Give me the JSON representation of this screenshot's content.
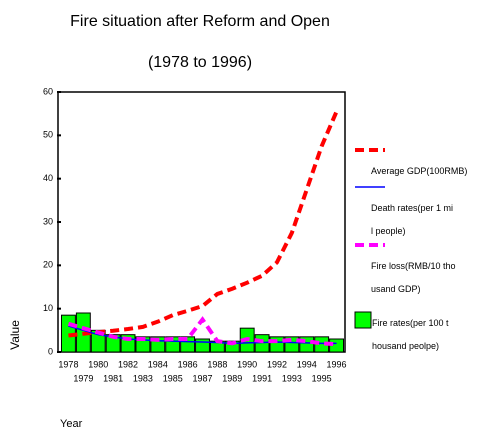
{
  "chart_data": {
    "type": "bar",
    "title": "Fire situation after Reform and Open",
    "subtitle": "(1978 to 1996)",
    "x_label": "Year",
    "y_label": "Value",
    "categories": [
      "1978",
      "1979",
      "1980",
      "1981",
      "1982",
      "1983",
      "1984",
      "1985",
      "1986",
      "1987",
      "1988",
      "1989",
      "1990",
      "1991",
      "1992",
      "1993",
      "1994",
      "1995",
      "1996"
    ],
    "ylim": [
      0,
      60
    ],
    "yticks": [
      0,
      10,
      20,
      30,
      40,
      50,
      60
    ],
    "grid": false,
    "legend": "right",
    "series": [
      {
        "name": "Average GDP(100RMB)",
        "type": "line",
        "color": "#ff0000",
        "dashed": true,
        "width": 4,
        "values": [
          3.8,
          4.2,
          4.6,
          4.9,
          5.3,
          5.8,
          7,
          8.5,
          9.5,
          10.6,
          13.4,
          14.6,
          16,
          17.6,
          20.7,
          27.5,
          37.5,
          47.5,
          55.5
        ]
      },
      {
        "name": "Death rates(per 1 mil people)",
        "type": "line",
        "color": "#0000ff",
        "dashed": false,
        "width": 1.5,
        "values": [
          6,
          5,
          4,
          3.5,
          3,
          2.8,
          2.6,
          2.5,
          2.4,
          2.3,
          2.2,
          2,
          2.1,
          2.2,
          2.3,
          2.2,
          2.1,
          2,
          2
        ]
      },
      {
        "name": "Fire loss(RMB/10 thousand GDP)",
        "type": "line",
        "color": "#ff00ff",
        "dashed": true,
        "width": 4,
        "values": [
          6.5,
          5.5,
          4.5,
          3.5,
          3,
          3,
          2.8,
          3,
          3,
          7.5,
          2.5,
          2,
          3,
          2.5,
          2.5,
          2.8,
          2.5,
          2,
          1.8
        ]
      },
      {
        "name": "Fire rates(per 100 thousand peolpe)",
        "type": "bar",
        "color": "#00ff00",
        "values": [
          8.5,
          9,
          5,
          4,
          4,
          3.5,
          3.5,
          3.5,
          3.5,
          3,
          2.5,
          2.5,
          5.5,
          4,
          3.5,
          3.5,
          3.5,
          3.5,
          3
        ]
      }
    ]
  }
}
